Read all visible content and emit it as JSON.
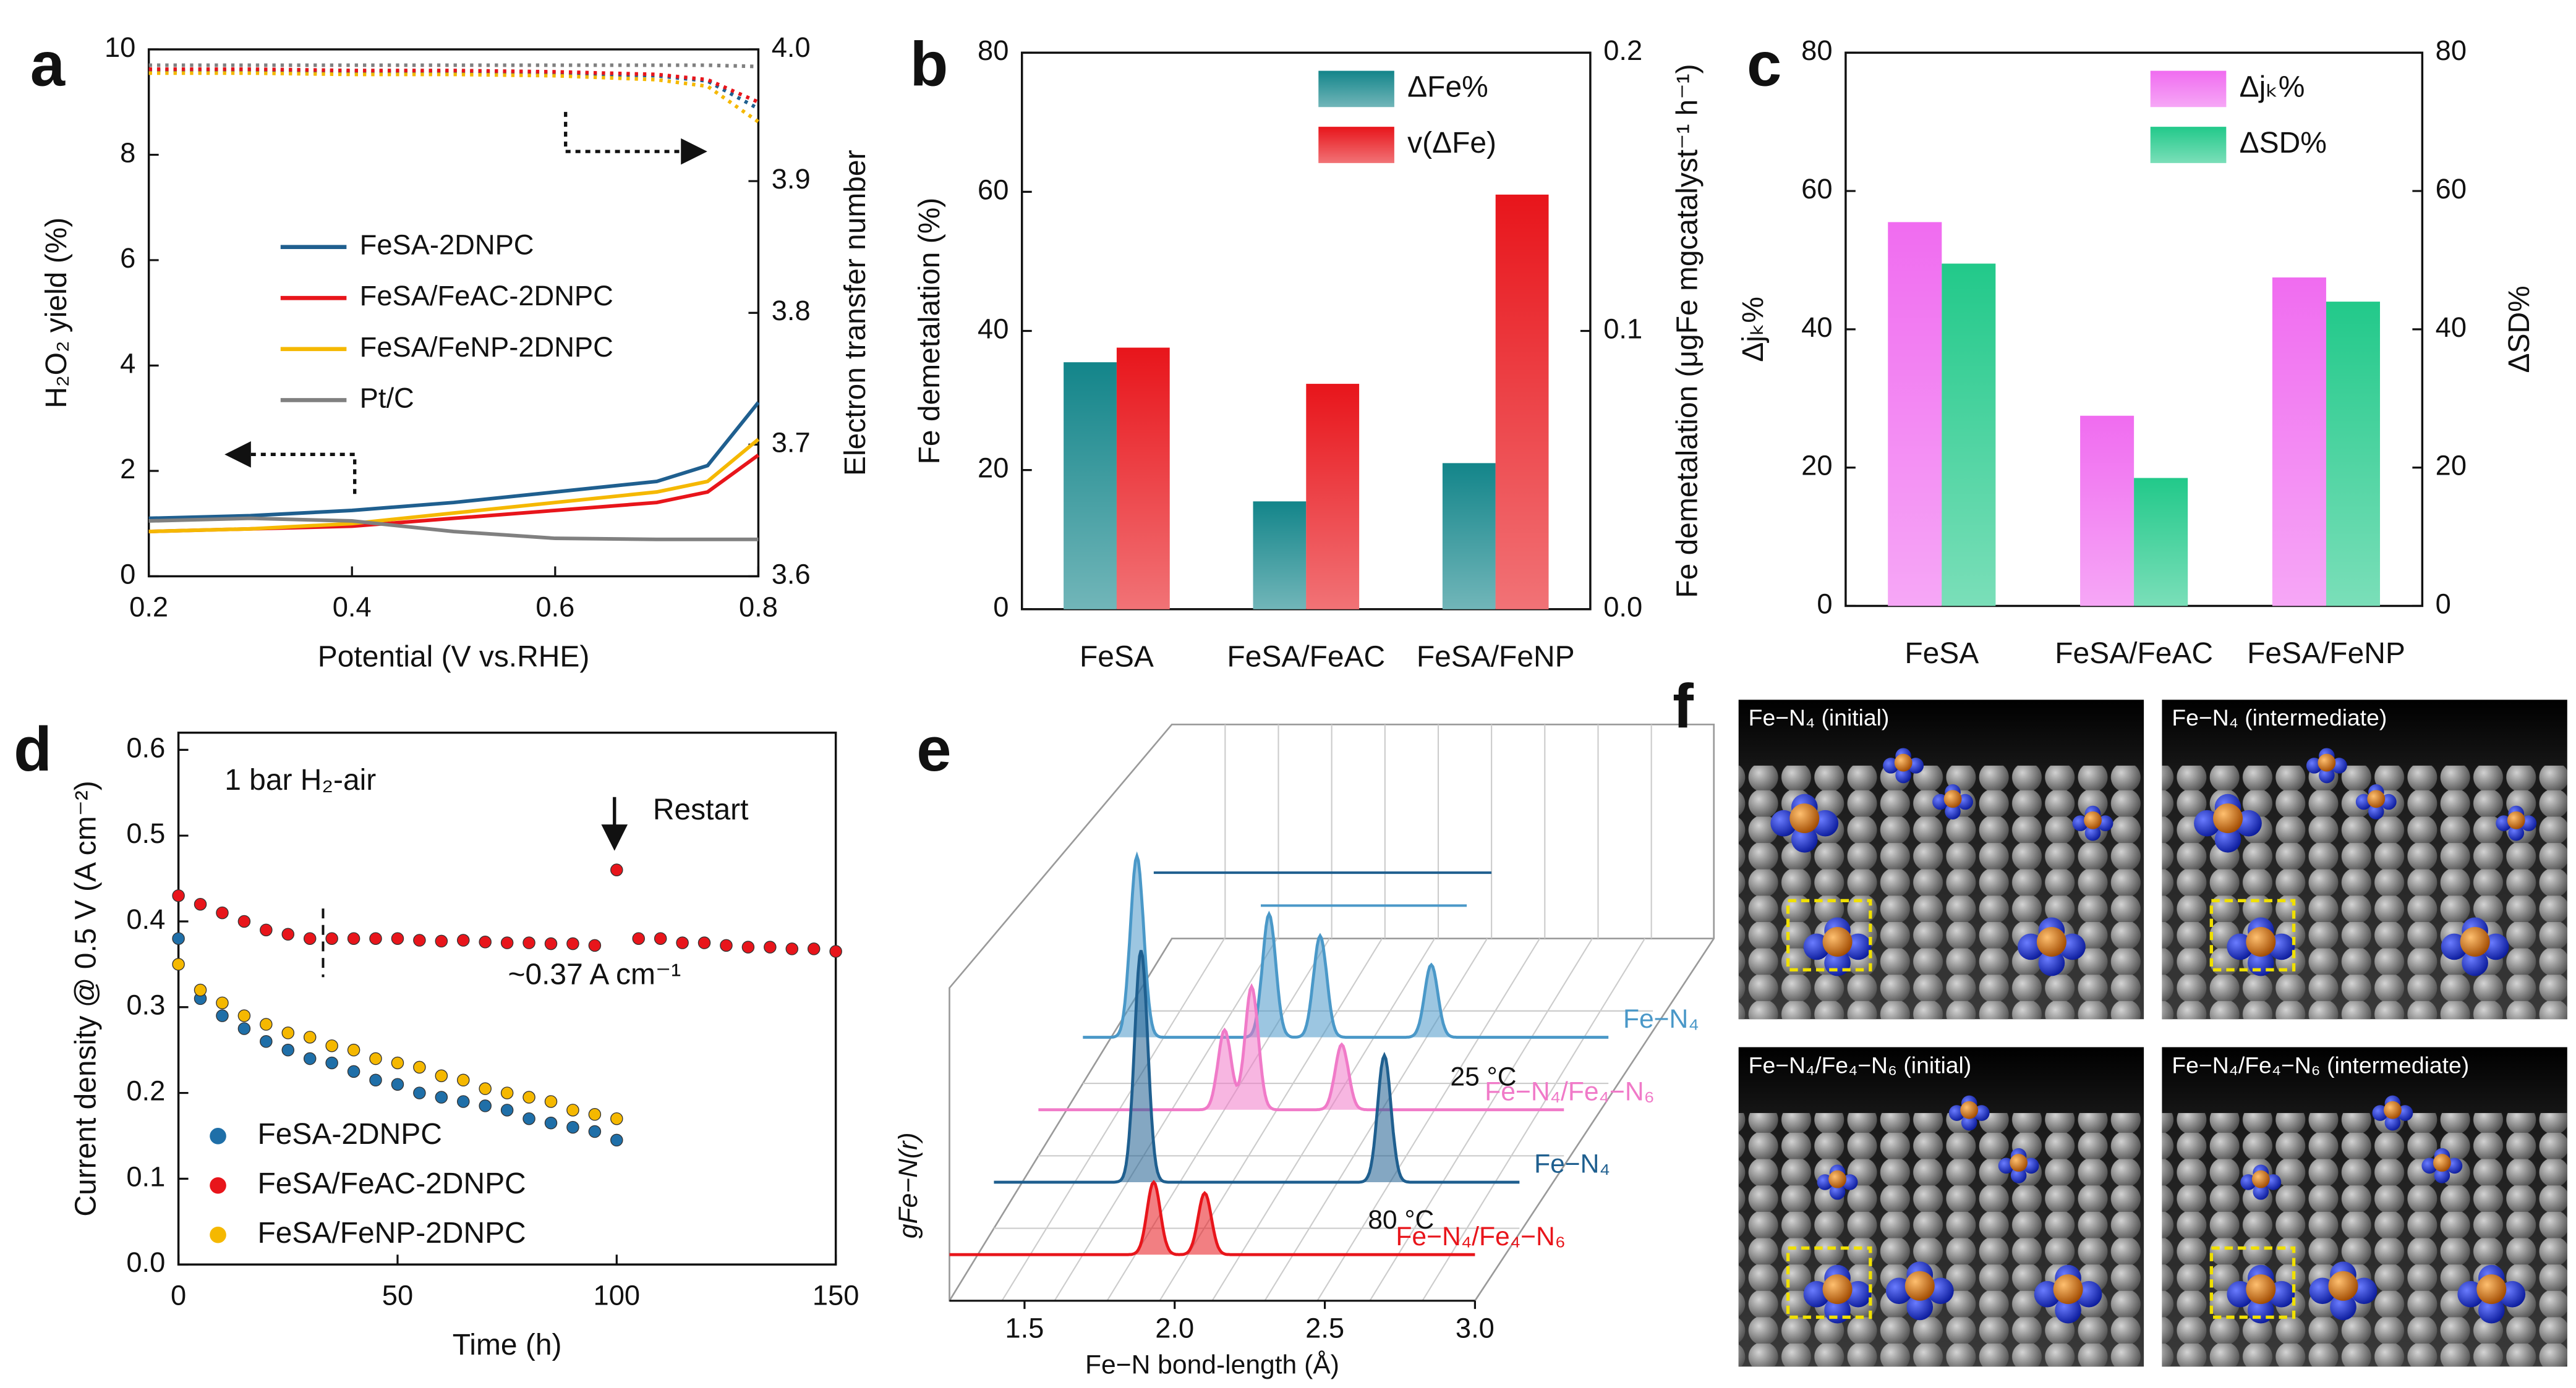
{
  "chart_data": [
    {
      "type": "line",
      "label": "a",
      "x_label": "Potential (V vs.RHE)",
      "y_label": "H₂O₂ yield (%)",
      "y2_label": "Electron transfer number",
      "x": [
        0.2,
        0.3,
        0.4,
        0.5,
        0.6,
        0.7,
        0.75,
        0.8
      ],
      "xlim": [
        0.2,
        0.8
      ],
      "xticks": [
        0.2,
        0.4,
        0.6,
        0.8
      ],
      "ylim": [
        0,
        10
      ],
      "yticks": [
        0,
        2,
        4,
        6,
        8,
        10
      ],
      "y2lim": [
        3.6,
        4.0
      ],
      "y2ticks": [
        3.6,
        3.7,
        3.8,
        3.9,
        {
          "value": 4,
          "label": "4.0"
        }
      ],
      "legend": "center left",
      "series": [
        {
          "name": "FeSA-2DNPC",
          "color": "#1f5f8f",
          "values": [
            1.1,
            1.15,
            1.25,
            1.4,
            1.6,
            1.8,
            2.1,
            3.3
          ],
          "y2_values": [
            3.984,
            3.984,
            3.983,
            3.983,
            3.982,
            3.98,
            3.976,
            3.955
          ]
        },
        {
          "name": "FeSA/FeAC-2DNPC",
          "color": "#e8151b",
          "values": [
            0.85,
            0.9,
            0.95,
            1.1,
            1.25,
            1.4,
            1.6,
            2.3
          ],
          "y2_values": [
            3.985,
            3.985,
            3.984,
            3.984,
            3.983,
            3.981,
            3.977,
            3.96
          ]
        },
        {
          "name": "FeSA/FeNP-2DNPC",
          "color": "#f5b800",
          "values": [
            0.85,
            0.9,
            1.0,
            1.2,
            1.4,
            1.6,
            1.8,
            2.6
          ],
          "y2_values": [
            3.982,
            3.982,
            3.981,
            3.981,
            3.98,
            3.977,
            3.972,
            3.945
          ]
        },
        {
          "name": "Pt/C",
          "color": "#808080",
          "values": [
            1.05,
            1.1,
            1.05,
            0.85,
            0.72,
            0.7,
            0.7,
            0.7
          ],
          "y2_values": [
            3.988,
            3.988,
            3.988,
            3.988,
            3.988,
            3.988,
            3.988,
            3.987
          ]
        }
      ]
    },
    {
      "type": "bar",
      "label": "b",
      "y_label": "Fe demetalation (%)",
      "y2_label": "Fe demetalation (μgFe mgcatalyst⁻¹ h⁻¹)",
      "categories": [
        "FeSA",
        "FeSA/FeAC",
        "FeSA/FeNP"
      ],
      "ylim": [
        0,
        80
      ],
      "yticks": [
        0,
        20,
        40,
        60,
        80
      ],
      "y2lim": [
        0,
        0.2
      ],
      "y2ticks": [
        {
          "value": 0,
          "label": "0.0"
        },
        0.1,
        0.2
      ],
      "legend": "upper right",
      "series": [
        {
          "name": "ΔFe%",
          "color": "#13858a",
          "values": [
            35.5,
            15.5,
            21
          ]
        },
        {
          "name": "v(ΔFe)",
          "color": "#e8151b",
          "axis": "y2",
          "values": [
            0.094,
            0.081,
            0.149
          ]
        }
      ]
    },
    {
      "type": "bar",
      "label": "c",
      "y_label": "Δjₖ%",
      "y2_label": "ΔSD%",
      "categories": [
        "FeSA",
        "FeSA/FeAC",
        "FeSA/FeNP"
      ],
      "ylim": [
        0,
        80
      ],
      "yticks": [
        0,
        20,
        40,
        60,
        80
      ],
      "y2lim": [
        0,
        80
      ],
      "y2ticks": [
        0,
        20,
        40,
        60,
        80
      ],
      "legend": "upper right",
      "series": [
        {
          "name": "Δjₖ%",
          "color": "#f06cf0",
          "values": [
            55.5,
            27.5,
            47.5
          ]
        },
        {
          "name": "ΔSD%",
          "color": "#22c98a",
          "axis": "y2",
          "values": [
            49.5,
            18.5,
            44
          ]
        }
      ]
    },
    {
      "type": "scatter",
      "label": "d",
      "x_label": "Time (h)",
      "y_label": "Current density @ 0.5 V (A cm⁻²)",
      "annotations": [
        "1 bar H₂-air",
        "Restart",
        "~0.37 A cm⁻¹"
      ],
      "x": [
        0,
        5,
        10,
        15,
        20,
        25,
        30,
        35,
        40,
        45,
        50,
        55,
        60,
        65,
        70,
        75,
        80,
        85,
        90,
        95,
        100,
        105,
        110,
        115,
        120,
        125,
        130,
        135,
        140,
        145,
        150
      ],
      "xlim": [
        0,
        150
      ],
      "xticks": [
        0,
        50,
        100,
        150
      ],
      "ylim": [
        0,
        0.62
      ],
      "yticks": [
        {
          "value": 0,
          "label": "0.0"
        },
        0.1,
        0.2,
        0.3,
        0.4,
        0.5,
        0.6
      ],
      "legend": "lower left",
      "series": [
        {
          "name": "FeSA-2DNPC",
          "color": "#1f6fa8",
          "values": [
            0.38,
            0.31,
            0.29,
            0.275,
            0.26,
            0.25,
            0.24,
            0.235,
            0.225,
            0.215,
            0.21,
            0.2,
            0.195,
            0.19,
            0.185,
            0.18,
            0.17,
            0.165,
            0.16,
            0.155,
            0.145,
            null,
            null,
            null,
            null,
            null,
            null,
            null,
            null,
            null,
            null
          ]
        },
        {
          "name": "FeSA/FeAC-2DNPC",
          "color": "#e8151b",
          "values": [
            0.43,
            0.42,
            0.41,
            0.4,
            0.39,
            0.385,
            0.38,
            0.38,
            0.38,
            0.38,
            0.38,
            0.378,
            0.377,
            0.378,
            0.376,
            0.375,
            0.375,
            0.374,
            0.374,
            0.372,
            0.46,
            0.38,
            0.38,
            0.375,
            0.375,
            0.372,
            0.37,
            0.37,
            0.368,
            0.368,
            0.365
          ]
        },
        {
          "name": "FeSA/FeNP-2DNPC",
          "color": "#f5b800",
          "values": [
            0.35,
            0.32,
            0.305,
            0.29,
            0.28,
            0.27,
            0.265,
            0.255,
            0.25,
            0.24,
            0.235,
            0.23,
            0.22,
            0.215,
            0.205,
            0.2,
            0.195,
            0.19,
            0.18,
            0.175,
            0.17,
            null,
            null,
            null,
            null,
            null,
            null,
            null,
            null,
            null,
            null
          ]
        }
      ]
    },
    {
      "type": "ridge",
      "label": "e",
      "x_label": "Fe−N bond-length (Å)",
      "y_label": "gFe−N(r)",
      "annotations": [
        "25 °C",
        "80 °C"
      ],
      "xlim": [
        1.25,
        3.0
      ],
      "xticks": [
        1.5,
        {
          "value": 2,
          "label": "2.0"
        },
        2.5,
        {
          "value": 3,
          "label": "3.0"
        }
      ],
      "series": [
        {
          "name": "Fe−N₄/Fe₄−N₆",
          "color": "#e8151b",
          "x": [
            1.93,
            2.1
          ],
          "values": [
            1.0,
            0.85
          ]
        },
        {
          "name": "Fe−N₄",
          "color": "#1f5f8f",
          "x": [
            1.74,
            2.55
          ],
          "values": [
            3.2,
            1.75
          ]
        },
        {
          "name": "Fe−N₄/Fe₄−N₆",
          "color": "#f07ac8",
          "x": [
            1.87,
            1.96,
            2.26
          ],
          "values": [
            1.1,
            1.7,
            0.9
          ]
        },
        {
          "name": "Fe−N₄",
          "color": "#4a98c8",
          "x": [
            1.43,
            1.87,
            2.04,
            2.41
          ],
          "values": [
            2.5,
            1.7,
            1.4,
            1.0
          ]
        }
      ]
    }
  ],
  "image_panel": {
    "label": "f",
    "tiles": [
      "Fe−N₄ (initial)",
      "Fe−N₄ (intermediate)",
      "Fe−N₄/Fe₄−N₆ (initial)",
      "Fe−N₄/Fe₄−N₆ (intermediate)"
    ]
  }
}
